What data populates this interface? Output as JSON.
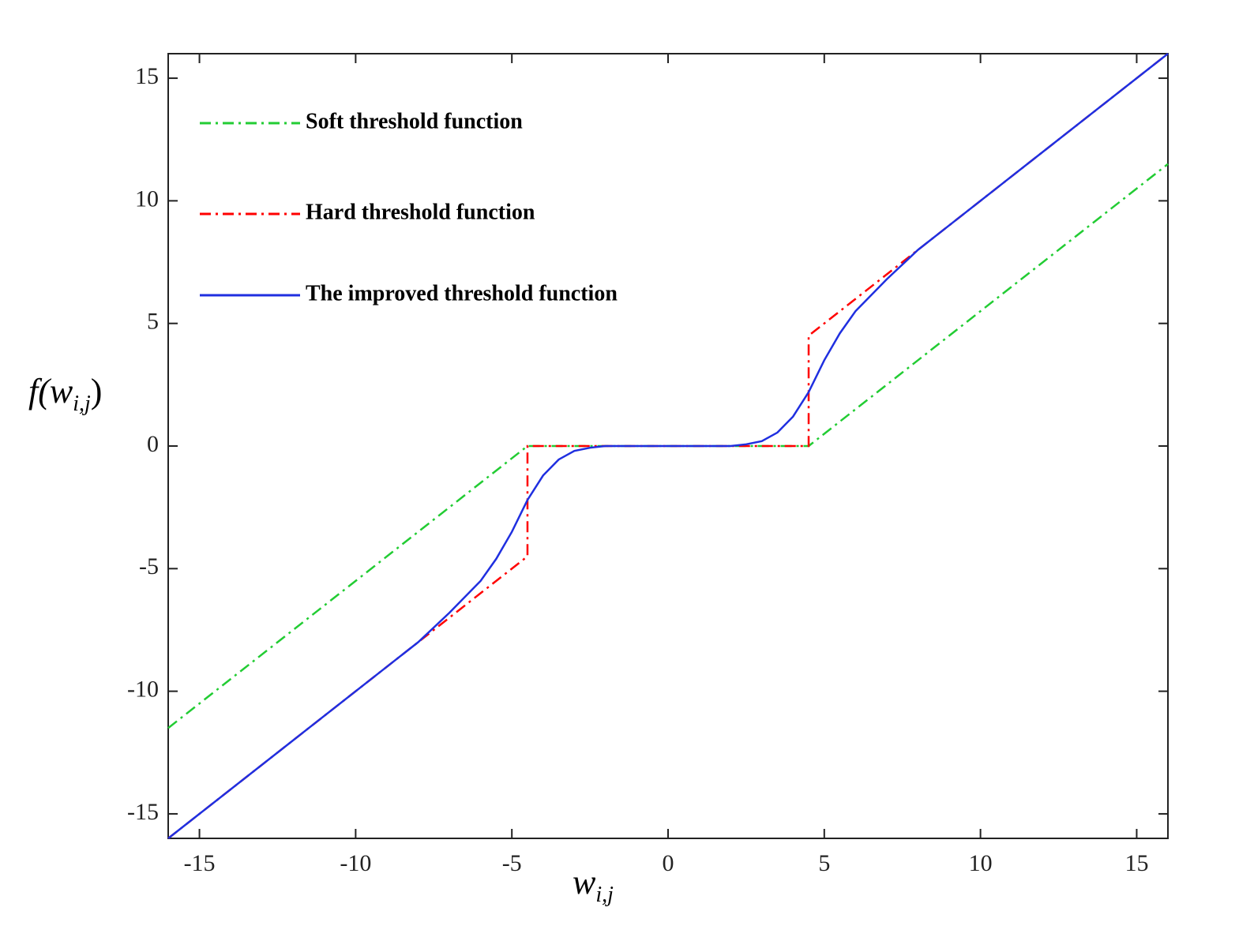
{
  "chart_data": {
    "type": "line",
    "xlabel": [
      "w",
      "i,j"
    ],
    "ylabel": [
      "f(w",
      "i,j",
      ")"
    ],
    "xlim": [
      -16,
      16
    ],
    "ylim": [
      -16,
      16
    ],
    "xticks": [
      -15,
      -10,
      -5,
      0,
      5,
      10,
      15
    ],
    "yticks": [
      -15,
      -10,
      -5,
      0,
      5,
      10,
      15
    ],
    "legend": "upper left",
    "series": [
      {
        "name": "Soft threshold function",
        "color": "#22cc33",
        "style": "dash-dot",
        "x": [
          -16,
          -4.5,
          4.5,
          16
        ],
        "values": [
          -11.5,
          0,
          0,
          11.5
        ]
      },
      {
        "name": "Hard threshold function",
        "color": "#ff0000",
        "style": "dash-dot",
        "x": [
          -16,
          -4.5,
          -4.5,
          4.5,
          4.5,
          16
        ],
        "values": [
          -16,
          -4.5,
          0,
          0,
          4.5,
          16
        ]
      },
      {
        "name": "The improved threshold function",
        "color": "#1f2fe0",
        "style": "solid",
        "x": [
          -16,
          -12,
          -9,
          -8,
          -7,
          -6,
          -5.5,
          -5,
          -4.5,
          -4,
          -3.5,
          -3,
          -2.5,
          -2,
          0,
          2,
          2.5,
          3,
          3.5,
          4,
          4.5,
          5,
          5.5,
          6,
          7,
          8,
          9,
          12,
          16
        ],
        "values": [
          -16,
          -12,
          -9,
          -8,
          -6.8,
          -5.5,
          -4.6,
          -3.5,
          -2.2,
          -1.2,
          -0.55,
          -0.2,
          -0.07,
          0,
          0,
          0,
          0.07,
          0.2,
          0.55,
          1.2,
          2.2,
          3.5,
          4.6,
          5.5,
          6.8,
          8,
          9,
          12,
          16
        ]
      }
    ]
  }
}
